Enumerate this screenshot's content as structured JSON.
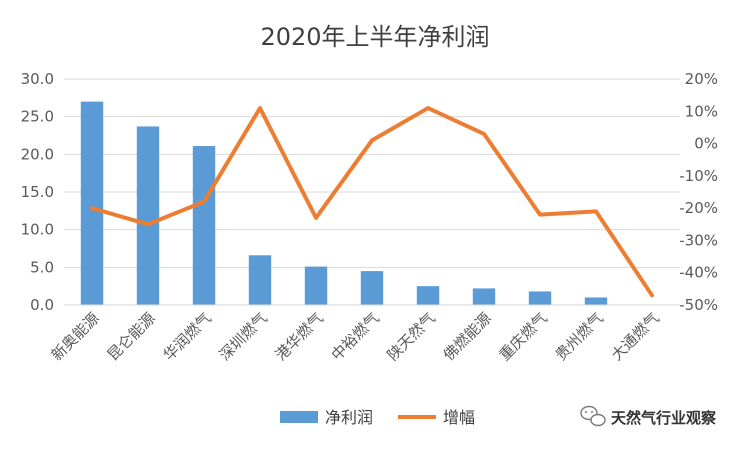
{
  "chart_data": {
    "type": "bar",
    "title": "2020年上半年净利润",
    "categories": [
      "新奥能源",
      "昆仑能源",
      "华润燃气",
      "深圳燃气",
      "港华燃气",
      "中裕燃气",
      "陕天然气",
      "佛燃能源",
      "重庆燃气",
      "贵州燃气",
      "大通燃气"
    ],
    "series": [
      {
        "name": "净利润",
        "type": "bar",
        "axis": "left",
        "color": "#5B9BD5",
        "values": [
          27.0,
          23.7,
          21.1,
          6.6,
          5.1,
          4.5,
          2.5,
          2.2,
          1.8,
          1.0,
          null
        ]
      },
      {
        "name": "增幅",
        "type": "line",
        "axis": "right",
        "color": "#ED7D31",
        "values": [
          -20,
          -25,
          -18,
          11,
          -23,
          1,
          11,
          3,
          -22,
          -21,
          -47
        ]
      }
    ],
    "y_left": {
      "min": 0,
      "max": 30,
      "ticks": [
        "0.0",
        "5.0",
        "10.0",
        "15.0",
        "20.0",
        "25.0",
        "30.0"
      ]
    },
    "y_right": {
      "min": -50,
      "max": 20,
      "ticks": [
        "-50%",
        "-40%",
        "-30%",
        "-20%",
        "-10%",
        "0%",
        "10%",
        "20%"
      ]
    },
    "grid": true,
    "legend_position": "bottom"
  },
  "watermark": {
    "text": "天然气行业观察",
    "icon": "wechat-icon"
  }
}
